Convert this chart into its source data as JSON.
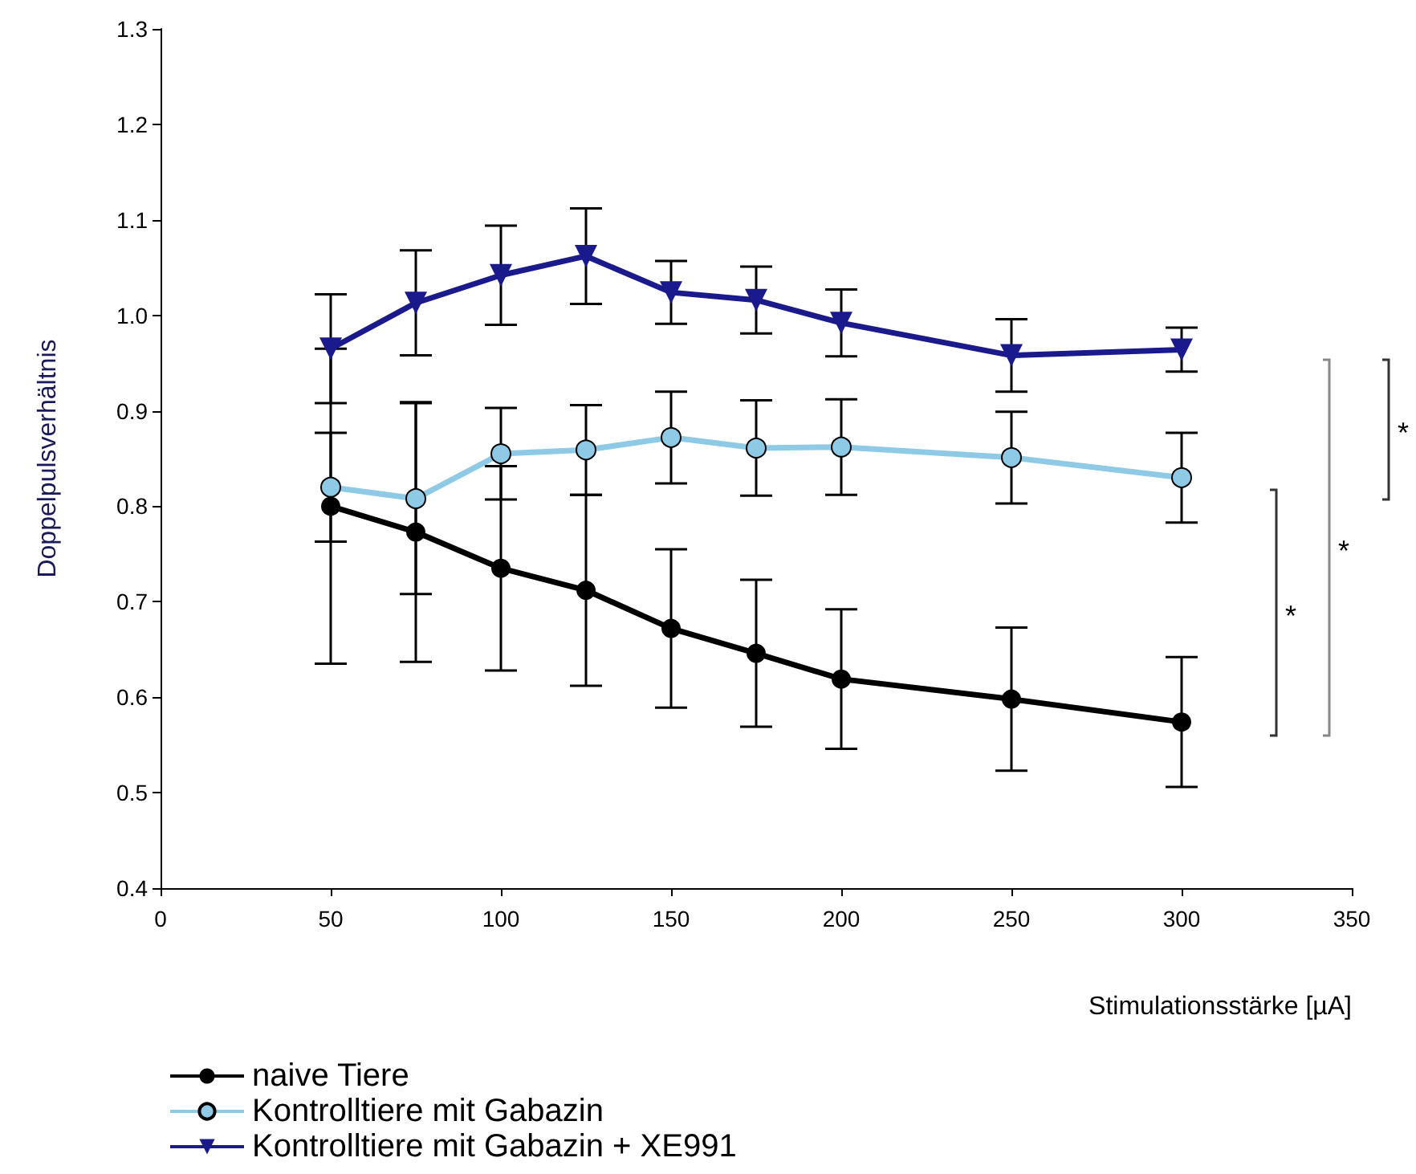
{
  "chart_data": {
    "type": "line",
    "xlabel": "Stimulationsstärke [µA]",
    "ylabel": "Doppelpulsverhältnis",
    "x": [
      50,
      75,
      100,
      125,
      150,
      175,
      200,
      250,
      300
    ],
    "series": [
      {
        "name": "naive Tiere",
        "color": "#000000",
        "marker": "circle",
        "values": [
          0.8,
          0.773,
          0.735,
          0.712,
          0.672,
          0.646,
          0.619,
          0.598,
          0.574
        ],
        "errors": [
          0.165,
          0.136,
          0.107,
          0.1,
          0.083,
          0.077,
          0.073,
          0.075,
          0.068
        ]
      },
      {
        "name": "Kontrolltiere mit Gabazin",
        "color": "#8ecae6",
        "marker": "circle",
        "values": [
          0.82,
          0.808,
          0.855,
          0.859,
          0.872,
          0.861,
          0.862,
          0.851,
          0.83
        ],
        "errors": [
          0.057,
          0.1,
          0.048,
          0.047,
          0.048,
          0.05,
          0.05,
          0.048,
          0.047
        ]
      },
      {
        "name": "Kontrolltiere mit Gabazin + XE991",
        "color": "#1a1a8c",
        "marker": "triangle",
        "values": [
          0.965,
          1.013,
          1.042,
          1.062,
          1.024,
          1.016,
          0.992,
          0.958,
          0.964
        ],
        "errors": [
          0.057,
          0.055,
          0.052,
          0.05,
          0.033,
          0.035,
          0.035,
          0.038,
          0.023
        ]
      }
    ],
    "xlim": [
      0,
      350
    ],
    "xticks": [
      0,
      50,
      100,
      150,
      200,
      250,
      300,
      350
    ],
    "ylim": [
      0.4,
      1.3
    ],
    "yticks": [
      0.4,
      0.5,
      0.6,
      0.7,
      0.8,
      0.9,
      {
        "value": 1.0,
        "label": "1.0"
      },
      1.1,
      1.2,
      1.3
    ],
    "annotations": [
      "*",
      "*",
      "*"
    ],
    "legend": "bottom left",
    "grid": false
  }
}
